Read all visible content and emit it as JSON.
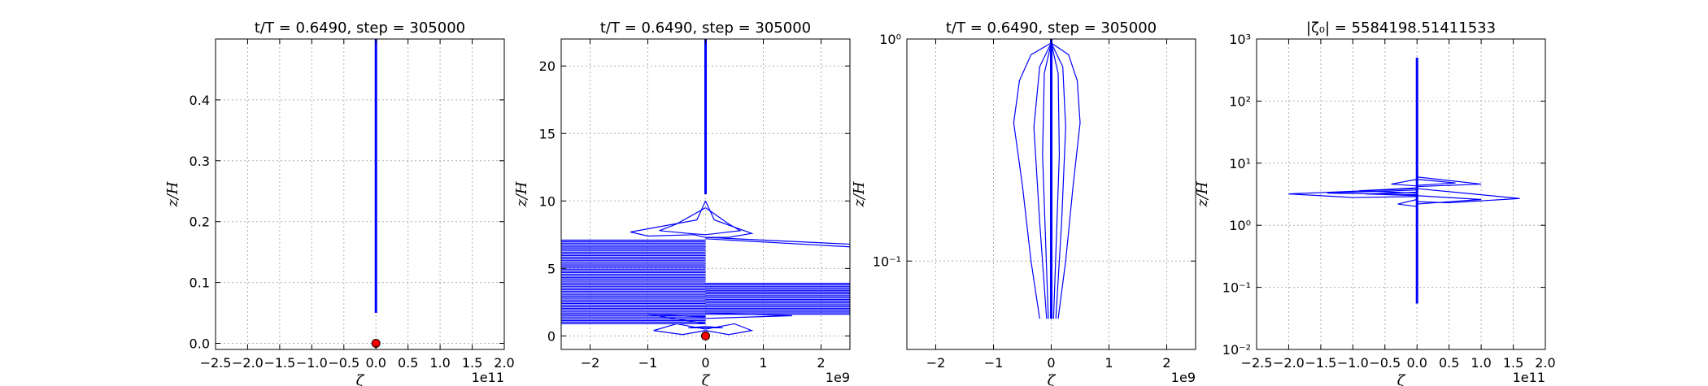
{
  "chart_data": [
    {
      "type": "line",
      "title": "t/T = 0.6490, step = 305000",
      "xlabel": "ζ",
      "ylabel": "z/H",
      "x_offset_label": "1e11",
      "xscale": "linear",
      "yscale": "linear",
      "xlim": [
        -2.5,
        2.0
      ],
      "ylim": [
        -0.01,
        0.5
      ],
      "xticks": [
        -2.5,
        -2.0,
        -1.5,
        -1.0,
        -0.5,
        0.0,
        0.5,
        1.0,
        1.5,
        2.0
      ],
      "xtick_labels": [
        "−2.5",
        "−2.0",
        "−1.5",
        "−1.0",
        "−0.5",
        "0.0",
        "0.5",
        "1.0",
        "1.5",
        "2.0"
      ],
      "yticks": [
        0.0,
        0.1,
        0.2,
        0.3,
        0.4
      ],
      "ytick_labels": [
        "0.0",
        "0.1",
        "0.2",
        "0.3",
        "0.4"
      ],
      "grid": true,
      "marker": {
        "x": 0.0,
        "y": 0.0,
        "color": "#ff0000"
      },
      "lines": [
        {
          "points": [
            [
              0.0,
              0.05
            ],
            [
              0.0,
              0.5
            ]
          ],
          "bold": true
        }
      ]
    },
    {
      "type": "line",
      "title": "t/T = 0.6490, step = 305000",
      "xlabel": "ζ",
      "ylabel": "z/H",
      "x_offset_label": "1e9",
      "xscale": "linear",
      "yscale": "linear",
      "xlim": [
        -2.5,
        2.5
      ],
      "ylim": [
        -1,
        22
      ],
      "xticks": [
        -2,
        -1,
        0,
        1,
        2
      ],
      "xtick_labels": [
        "−2",
        "−1",
        "0",
        "1",
        "2"
      ],
      "yticks": [
        0,
        5,
        10,
        15,
        20
      ],
      "ytick_labels": [
        "0",
        "5",
        "10",
        "15",
        "20"
      ],
      "grid": true,
      "marker": {
        "x": 0.0,
        "y": 0.0,
        "color": "#ff0000"
      },
      "lines": [
        {
          "points": [
            [
              0.0,
              10.5
            ],
            [
              0.0,
              22
            ]
          ],
          "bold": true
        },
        {
          "points": [
            [
              0.0,
              10
            ],
            [
              -0.15,
              8.6
            ],
            [
              -1.3,
              7.7
            ],
            [
              -1.0,
              7.4
            ],
            [
              -0.2,
              7.5
            ],
            [
              0.0,
              7.3
            ]
          ]
        },
        {
          "points": [
            [
              0.0,
              10
            ],
            [
              0.15,
              8.6
            ],
            [
              0.8,
              7.6
            ],
            [
              0.4,
              7.3
            ],
            [
              0.0,
              7.3
            ]
          ]
        },
        {
          "points": [
            [
              0.0,
              9.5
            ],
            [
              -0.5,
              8.3
            ],
            [
              -0.8,
              7.8
            ],
            [
              -0.3,
              7.6
            ],
            [
              0.0,
              7.5
            ]
          ]
        },
        {
          "points": [
            [
              0.0,
              9.5
            ],
            [
              0.4,
              8.3
            ],
            [
              0.6,
              7.8
            ],
            [
              0.2,
              7.6
            ],
            [
              0.0,
              7.5
            ]
          ]
        },
        {
          "points": [
            [
              0.0,
              7.3
            ],
            [
              2.5,
              6.8
            ]
          ]
        },
        {
          "points": [
            [
              0.0,
              7.2
            ],
            [
              2.5,
              6.6
            ]
          ]
        },
        {
          "points": [
            [
              0.0,
              0.5
            ],
            [
              -0.5,
              0.9
            ],
            [
              -0.9,
              0.4
            ],
            [
              -0.4,
              0.1
            ],
            [
              0.0,
              0.4
            ]
          ]
        },
        {
          "points": [
            [
              0.0,
              0.5
            ],
            [
              0.5,
              0.9
            ],
            [
              0.8,
              0.4
            ],
            [
              0.4,
              0.1
            ],
            [
              0.0,
              0.4
            ]
          ]
        },
        {
          "points": [
            [
              0.0,
              0.9
            ],
            [
              -1.0,
              1.6
            ],
            [
              0.0,
              1.4
            ]
          ]
        },
        {
          "points": [
            [
              0.0,
              1.3
            ],
            [
              1.5,
              1.5
            ],
            [
              0.0,
              1.7
            ]
          ]
        },
        {
          "points": [
            [
              0.0,
              0.6
            ],
            [
              -0.3,
              0.6
            ],
            [
              0.0,
              0.7
            ]
          ]
        },
        {
          "points": [
            [
              0.0,
              0.6
            ],
            [
              0.3,
              0.6
            ],
            [
              0.0,
              0.7
            ]
          ]
        }
      ],
      "bands": [
        {
          "side": "left",
          "y_from": 0.9,
          "y_to": 7.1,
          "count": 55
        },
        {
          "side": "right",
          "y_from": 1.6,
          "y_to": 3.9,
          "count": 22
        }
      ]
    },
    {
      "type": "line",
      "title": "t/T = 0.6490, step = 305000",
      "xlabel": "ζ",
      "ylabel": "z/H",
      "x_offset_label": "1e9",
      "xscale": "linear",
      "yscale": "log",
      "xlim": [
        -2.5,
        2.5
      ],
      "ylim": [
        0.04,
        1.0
      ],
      "xticks": [
        -2,
        -1,
        0,
        1,
        2
      ],
      "xtick_labels": [
        "−2",
        "−1",
        "0",
        "1",
        "2"
      ],
      "yticks": [
        0.1,
        1.0
      ],
      "ytick_labels": [
        "10⁻¹",
        "10⁰"
      ],
      "grid": true,
      "lines": [
        {
          "points": [
            [
              0.0,
              0.96
            ],
            [
              -0.35,
              0.85
            ],
            [
              -0.55,
              0.65
            ],
            [
              -0.65,
              0.42
            ],
            [
              -0.5,
              0.22
            ],
            [
              -0.35,
              0.1
            ],
            [
              -0.2,
              0.055
            ]
          ]
        },
        {
          "points": [
            [
              0.0,
              0.96
            ],
            [
              0.3,
              0.85
            ],
            [
              0.45,
              0.65
            ],
            [
              0.5,
              0.42
            ],
            [
              0.38,
              0.22
            ],
            [
              0.25,
              0.1
            ],
            [
              0.12,
              0.055
            ]
          ]
        },
        {
          "points": [
            [
              0.0,
              0.96
            ],
            [
              -0.2,
              0.75
            ],
            [
              -0.3,
              0.4
            ],
            [
              -0.2,
              0.15
            ],
            [
              -0.08,
              0.055
            ]
          ]
        },
        {
          "points": [
            [
              0.0,
              0.96
            ],
            [
              0.2,
              0.75
            ],
            [
              0.25,
              0.4
            ],
            [
              0.18,
              0.15
            ],
            [
              0.08,
              0.055
            ]
          ]
        },
        {
          "points": [
            [
              0.0,
              0.96
            ],
            [
              -0.12,
              0.7
            ],
            [
              -0.15,
              0.3
            ],
            [
              -0.05,
              0.055
            ]
          ]
        },
        {
          "points": [
            [
              0.0,
              0.96
            ],
            [
              0.12,
              0.7
            ],
            [
              0.14,
              0.3
            ],
            [
              0.04,
              0.055
            ]
          ]
        },
        {
          "points": [
            [
              0.0,
              1.0
            ],
            [
              0.0,
              0.055
            ]
          ],
          "bold": true
        }
      ]
    },
    {
      "type": "line",
      "title": "|ζ₀| = 5584198.51411533",
      "xlabel": "ζ",
      "ylabel": "z/H",
      "x_offset_label": "1e11",
      "xscale": "linear",
      "yscale": "log",
      "xlim": [
        -2.5,
        2.0
      ],
      "ylim": [
        0.01,
        1000
      ],
      "xticks": [
        -2.5,
        -2.0,
        -1.5,
        -1.0,
        -0.5,
        0.0,
        0.5,
        1.0,
        1.5,
        2.0
      ],
      "xtick_labels": [
        "−2.5",
        "−2.0",
        "−1.5",
        "−1.0",
        "−0.5",
        "0.0",
        "0.5",
        "1.0",
        "1.5",
        "2.0"
      ],
      "yticks": [
        0.01,
        0.1,
        1,
        10,
        100,
        1000
      ],
      "ytick_labels": [
        "10⁻²",
        "10⁻¹",
        "10⁰",
        "10¹",
        "10²",
        "10³"
      ],
      "grid": true,
      "lines": [
        {
          "points": [
            [
              0.0,
              0.055
            ],
            [
              0.0,
              500
            ]
          ],
          "bold": true
        },
        {
          "points": [
            [
              0.0,
              6.0
            ],
            [
              1.0,
              4.6
            ],
            [
              0.0,
              4.2
            ]
          ]
        },
        {
          "points": [
            [
              0.0,
              5.5
            ],
            [
              0.6,
              4.8
            ],
            [
              0.0,
              4.4
            ]
          ]
        },
        {
          "points": [
            [
              0.0,
              5.5
            ],
            [
              -0.4,
              4.6
            ],
            [
              0.0,
              4.3
            ]
          ]
        },
        {
          "points": [
            [
              0.0,
              3.9
            ],
            [
              -2.0,
              3.2
            ],
            [
              -1.0,
              2.8
            ],
            [
              0.0,
              2.9
            ]
          ]
        },
        {
          "points": [
            [
              0.0,
              3.7
            ],
            [
              -1.4,
              3.3
            ],
            [
              0.0,
              3.1
            ]
          ]
        },
        {
          "points": [
            [
              0.0,
              3.4
            ],
            [
              -0.8,
              3.2
            ],
            [
              0.0,
              3.0
            ]
          ]
        },
        {
          "points": [
            [
              0.0,
              3.9
            ],
            [
              1.6,
              2.7
            ],
            [
              0.5,
              2.3
            ],
            [
              0.0,
              2.4
            ]
          ]
        },
        {
          "points": [
            [
              0.0,
              3.0
            ],
            [
              1.0,
              2.6
            ],
            [
              0.0,
              2.2
            ]
          ]
        },
        {
          "points": [
            [
              0.0,
              2.6
            ],
            [
              -0.3,
              2.2
            ],
            [
              0.0,
              2.0
            ]
          ]
        },
        {
          "points": [
            [
              0.0,
              4.0
            ],
            [
              -0.9,
              3.6
            ],
            [
              0.0,
              3.3
            ]
          ]
        }
      ]
    }
  ]
}
